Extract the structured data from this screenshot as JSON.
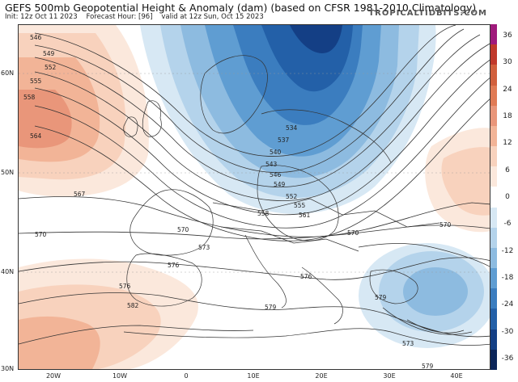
{
  "header": {
    "title": "GEFS 500mb Geopotential Height & Anomaly (dam) (based on CFSR 1981-2010 Climatology)",
    "init": "Init: 12z Oct 11 2023",
    "forecast_hour": "Forecast Hour: [96]",
    "valid": "valid at 12z Sun, Oct 15 2023",
    "brand": "TROPICALTIDBITS.COM"
  },
  "axes": {
    "lat_labels": [
      "60N",
      "50N",
      "40N",
      "30N"
    ],
    "lon_labels": [
      "20W",
      "10W",
      "0",
      "10E",
      "20E",
      "30E",
      "40E"
    ]
  },
  "colorbar": {
    "labels": [
      "36",
      "30",
      "24",
      "18",
      "12",
      "6",
      "0",
      "-6",
      "-12",
      "-18",
      "-24",
      "-30",
      "-36"
    ],
    "colors": [
      "#a01a7c",
      "#c0392b",
      "#d1603d",
      "#e07b55",
      "#e9967a",
      "#f2b497",
      "#f8d2bd",
      "#fbe8dc",
      "#ffffff",
      "#d7e8f4",
      "#b4d3eb",
      "#8dbbe0",
      "#5f9dd2",
      "#3b7dbf",
      "#2360a8",
      "#143f85",
      "#0b2559"
    ]
  },
  "contour_labels": [
    "546",
    "549",
    "552",
    "555",
    "558",
    "564",
    "567",
    "570",
    "570",
    "570",
    "570",
    "573",
    "576",
    "576",
    "579",
    "579",
    "582",
    "573",
    "576",
    "579",
    "534",
    "537",
    "540",
    "543",
    "546",
    "549",
    "552",
    "555",
    "558",
    "561"
  ]
}
